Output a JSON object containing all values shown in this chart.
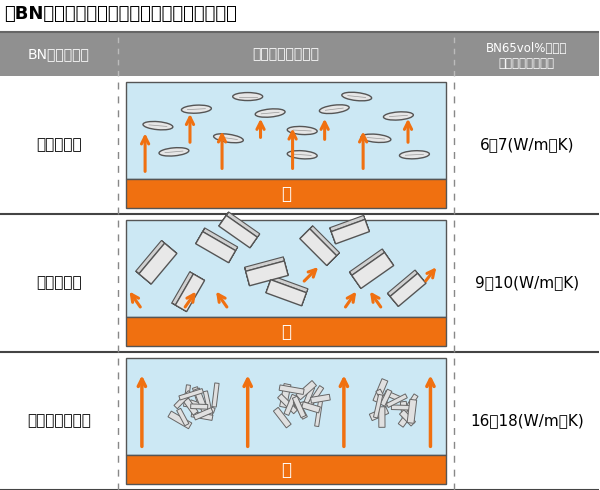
{
  "title": "各BN粒子シート内配向状態模式図と熱伝導率",
  "col1_header": "BN粒子タイプ",
  "col2_header": "放熱シート模式図",
  "col3_header": "BN65vol%シート\n厚み方向熱伝導率",
  "rows": [
    {
      "label": "薄片単粒子",
      "conductivity": "6〜7(W/m・K)"
    },
    {
      "label": "肉厚単粒子",
      "conductivity": "9〜10(W/m・K)"
    },
    {
      "label": "大粒径凝集粒子",
      "conductivity": "16〜18(W/m・K)"
    }
  ],
  "heat_label": "熱",
  "bg_color": "#ffffff",
  "header_bg": "#909090",
  "diagram_bg": "#cce8f4",
  "orange_color": "#F07010",
  "title_fontsize": 13,
  "header_fontsize": 10,
  "label_fontsize": 11,
  "cond_fontsize": 11
}
